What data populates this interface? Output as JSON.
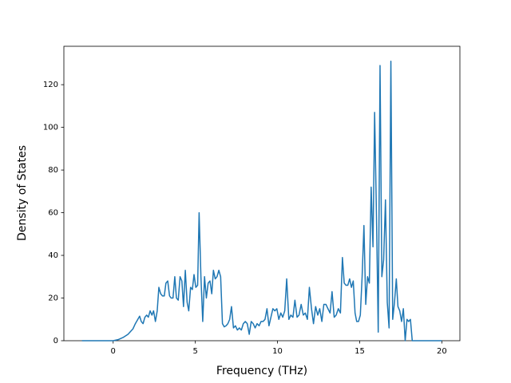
{
  "chart_data": {
    "type": "line",
    "xlabel": "Frequency (THz)",
    "ylabel": "Density of States",
    "xlim": [
      -3.0,
      21.1
    ],
    "ylim": [
      0,
      138
    ],
    "xticks": [
      0,
      5,
      10,
      15,
      20
    ],
    "yticks": [
      0,
      20,
      40,
      60,
      80,
      100,
      120
    ],
    "series": [
      {
        "color": "#1f77b4",
        "x": [
          -1.9,
          0,
          0.3,
          0.6,
          0.9,
          1.2,
          1.35,
          1.5,
          1.61,
          1.71,
          1.82,
          1.93,
          2.04,
          2.14,
          2.25,
          2.36,
          2.46,
          2.57,
          2.68,
          2.78,
          2.89,
          3.0,
          3.11,
          3.21,
          3.32,
          3.43,
          3.53,
          3.64,
          3.75,
          3.85,
          3.96,
          4.07,
          4.18,
          4.28,
          4.39,
          4.5,
          4.6,
          4.71,
          4.82,
          4.92,
          5.03,
          5.14,
          5.23,
          5.34,
          5.45,
          5.56,
          5.67,
          5.78,
          5.89,
          6.0,
          6.1,
          6.21,
          6.32,
          6.43,
          6.54,
          6.65,
          6.76,
          6.87,
          6.98,
          7.09,
          7.2,
          7.32,
          7.44,
          7.56,
          7.68,
          7.8,
          7.92,
          8.04,
          8.16,
          8.28,
          8.4,
          8.52,
          8.64,
          8.76,
          8.88,
          9.0,
          9.12,
          9.24,
          9.36,
          9.48,
          9.6,
          9.72,
          9.84,
          9.96,
          10.08,
          10.2,
          10.32,
          10.44,
          10.56,
          10.69,
          10.81,
          10.94,
          11.06,
          11.19,
          11.31,
          11.44,
          11.57,
          11.69,
          11.82,
          11.94,
          12.07,
          12.19,
          12.32,
          12.45,
          12.57,
          12.7,
          12.82,
          12.95,
          13.07,
          13.2,
          13.32,
          13.45,
          13.57,
          13.7,
          13.83,
          13.95,
          14.06,
          14.17,
          14.28,
          14.39,
          14.5,
          14.61,
          14.72,
          14.82,
          14.93,
          15.04,
          15.15,
          15.26,
          15.37,
          15.48,
          15.59,
          15.7,
          15.81,
          15.91,
          16.02,
          16.13,
          16.24,
          16.35,
          16.46,
          16.57,
          16.68,
          16.79,
          16.9,
          17.01,
          17.12,
          17.23,
          17.33,
          17.44,
          17.55,
          17.66,
          17.77,
          17.88,
          17.98,
          18.09,
          18.2,
          20.0
        ],
        "values": [
          0,
          0,
          0.5,
          1.5,
          3,
          5.5,
          8,
          10,
          11.5,
          9,
          8,
          11,
          12,
          11,
          14,
          12,
          14,
          9,
          14,
          25,
          22,
          21,
          21,
          27,
          28,
          21,
          20,
          20,
          30,
          20,
          19,
          30,
          28,
          16,
          33,
          18,
          14,
          25,
          24,
          31,
          25,
          26,
          60,
          30,
          9,
          30,
          20,
          27,
          28,
          22,
          33,
          29,
          30,
          33,
          30,
          8,
          6.5,
          7,
          8,
          10,
          16,
          6,
          7,
          5,
          6,
          5,
          8,
          9,
          8,
          3,
          9,
          8,
          6,
          8,
          7,
          9,
          9,
          10,
          15,
          7,
          11,
          15,
          14,
          15,
          10,
          13,
          11,
          14,
          29,
          10,
          12,
          11,
          19,
          11,
          12,
          17,
          12,
          13,
          10,
          25,
          15,
          8,
          16,
          12,
          15,
          9,
          17,
          17,
          15,
          13,
          23,
          11,
          12,
          15,
          13,
          39,
          27,
          26,
          26,
          29,
          25,
          28,
          13,
          9,
          9,
          12,
          30,
          54,
          17,
          30,
          27,
          72,
          44,
          107,
          60,
          4,
          129,
          30,
          38,
          66,
          18,
          6,
          131,
          10,
          18,
          29,
          16,
          14,
          9,
          15,
          0,
          10,
          9,
          10,
          0,
          0
        ]
      }
    ]
  }
}
